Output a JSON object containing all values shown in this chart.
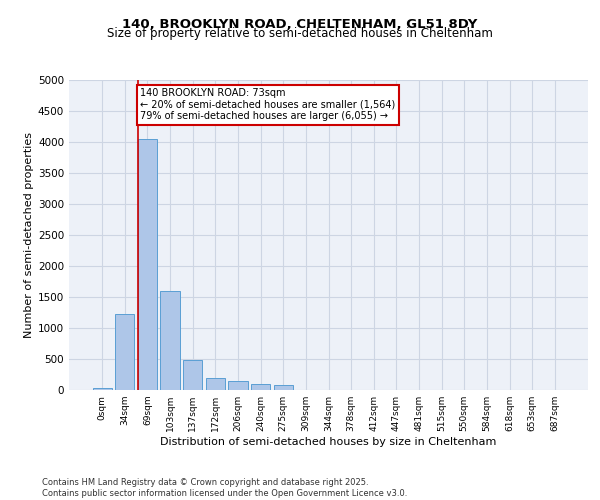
{
  "title1": "140, BROOKLYN ROAD, CHELTENHAM, GL51 8DY",
  "title2": "Size of property relative to semi-detached houses in Cheltenham",
  "xlabel": "Distribution of semi-detached houses by size in Cheltenham",
  "ylabel": "Number of semi-detached properties",
  "categories": [
    "0sqm",
    "34sqm",
    "69sqm",
    "103sqm",
    "137sqm",
    "172sqm",
    "206sqm",
    "240sqm",
    "275sqm",
    "309sqm",
    "344sqm",
    "378sqm",
    "412sqm",
    "447sqm",
    "481sqm",
    "515sqm",
    "550sqm",
    "584sqm",
    "618sqm",
    "653sqm",
    "687sqm"
  ],
  "values": [
    30,
    1230,
    4050,
    1600,
    480,
    200,
    150,
    95,
    75,
    0,
    0,
    0,
    0,
    0,
    0,
    0,
    0,
    0,
    0,
    0,
    0
  ],
  "bar_color": "#aec6e8",
  "bar_edge_color": "#5a9fd4",
  "vline_color": "#cc0000",
  "annotation_box_text": "140 BROOKLYN ROAD: 73sqm\n← 20% of semi-detached houses are smaller (1,564)\n79% of semi-detached houses are larger (6,055) →",
  "annotation_box_color": "#cc0000",
  "ylim": [
    0,
    5000
  ],
  "yticks": [
    0,
    500,
    1000,
    1500,
    2000,
    2500,
    3000,
    3500,
    4000,
    4500,
    5000
  ],
  "grid_color": "#cdd5e3",
  "background_color": "#edf1f8",
  "footer": "Contains HM Land Registry data © Crown copyright and database right 2025.\nContains public sector information licensed under the Open Government Licence v3.0."
}
